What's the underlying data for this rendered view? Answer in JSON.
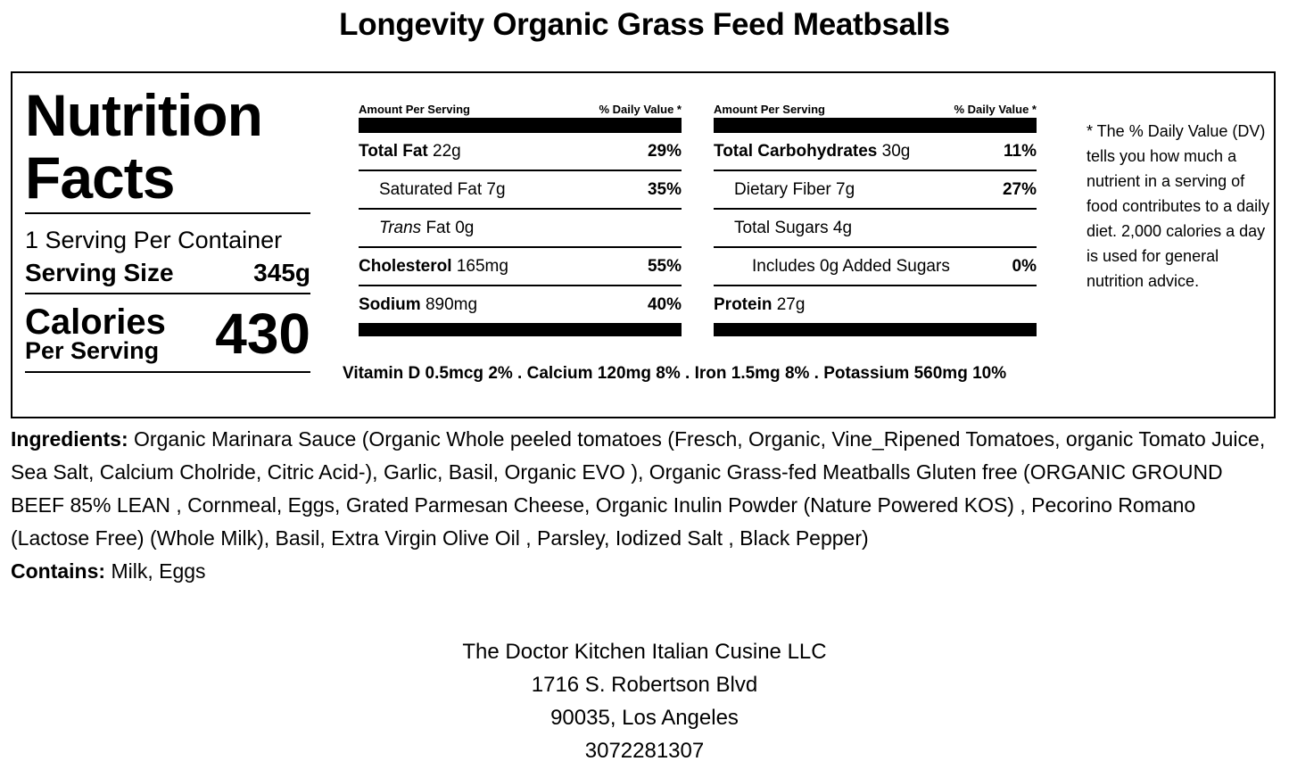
{
  "title": "Longevity Organic Grass Feed Meatbsalls",
  "label": {
    "heading_line1": "Nutrition",
    "heading_line2": "Facts",
    "servings_per_container": "1 Serving Per Container",
    "serving_size_label": "Serving Size",
    "serving_size_value": "345g",
    "calories_label": "Calories",
    "per_serving_label": "Per Serving",
    "calories_value": "430"
  },
  "table_left": {
    "header_amount": "Amount Per Serving",
    "header_dv": "% Daily Value *",
    "rows": [
      {
        "name": "Total Fat",
        "amount": "22g",
        "pct": "29%"
      },
      {
        "name": "Saturated Fat",
        "amount": "7g",
        "pct": "35%"
      },
      {
        "name": "Trans",
        "name_suffix": "Fat",
        "amount": "0g",
        "pct": ""
      },
      {
        "name": "Cholesterol",
        "amount": "165mg",
        "pct": "55%"
      },
      {
        "name": "Sodium",
        "amount": "890mg",
        "pct": "40%"
      }
    ]
  },
  "table_right": {
    "header_amount": "Amount Per Serving",
    "header_dv": "% Daily Value *",
    "rows": [
      {
        "name": "Total Carbohydrates",
        "amount": "30g",
        "pct": "11%"
      },
      {
        "name": "Dietary Fiber",
        "amount": "7g",
        "pct": "27%"
      },
      {
        "name": "Total Sugars",
        "amount": "4g",
        "pct": ""
      },
      {
        "name": "Includes 0g Added Sugars",
        "amount": "",
        "pct": "0%"
      },
      {
        "name": "Protein",
        "amount": "27g",
        "pct": ""
      }
    ]
  },
  "vitamins": "Vitamin D 0.5mcg 2% . Calcium 120mg 8% . Iron 1.5mg 8% . Potassium 560mg 10%",
  "dv_note": "* The % Daily Value (DV) tells you how much a nutrient in a serving of food contributes to a daily diet. 2,000 calories a day is used for general nutrition advice.",
  "ingredients_label": "Ingredients:",
  "ingredients_text": " Organic Marinara Sauce (Organic Whole peeled tomatoes (Fresch, Organic, Vine_Ripened Tomatoes, organic Tomato Juice, Sea Salt, Calcium Cholride, Citric Acid-), Garlic, Basil, Organic EVO ), Organic Grass-fed Meatballs Gluten free (ORGANIC GROUND BEEF 85% LEAN , Cornmeal, Eggs, Grated Parmesan Cheese, Organic Inulin Powder (Nature Powered KOS) , Pecorino Romano (Lactose Free) (Whole Milk), Basil, Extra Virgin Olive Oil , Parsley, Iodized Salt , Black Pepper)",
  "contains_label": "Contains:",
  "contains_text": " Milk, Eggs",
  "footer": {
    "company": "The Doctor Kitchen Italian Cusine LLC",
    "street": "1716 S. Robertson Blvd",
    "city": "90035, Los Angeles",
    "phone": "3072281307"
  }
}
